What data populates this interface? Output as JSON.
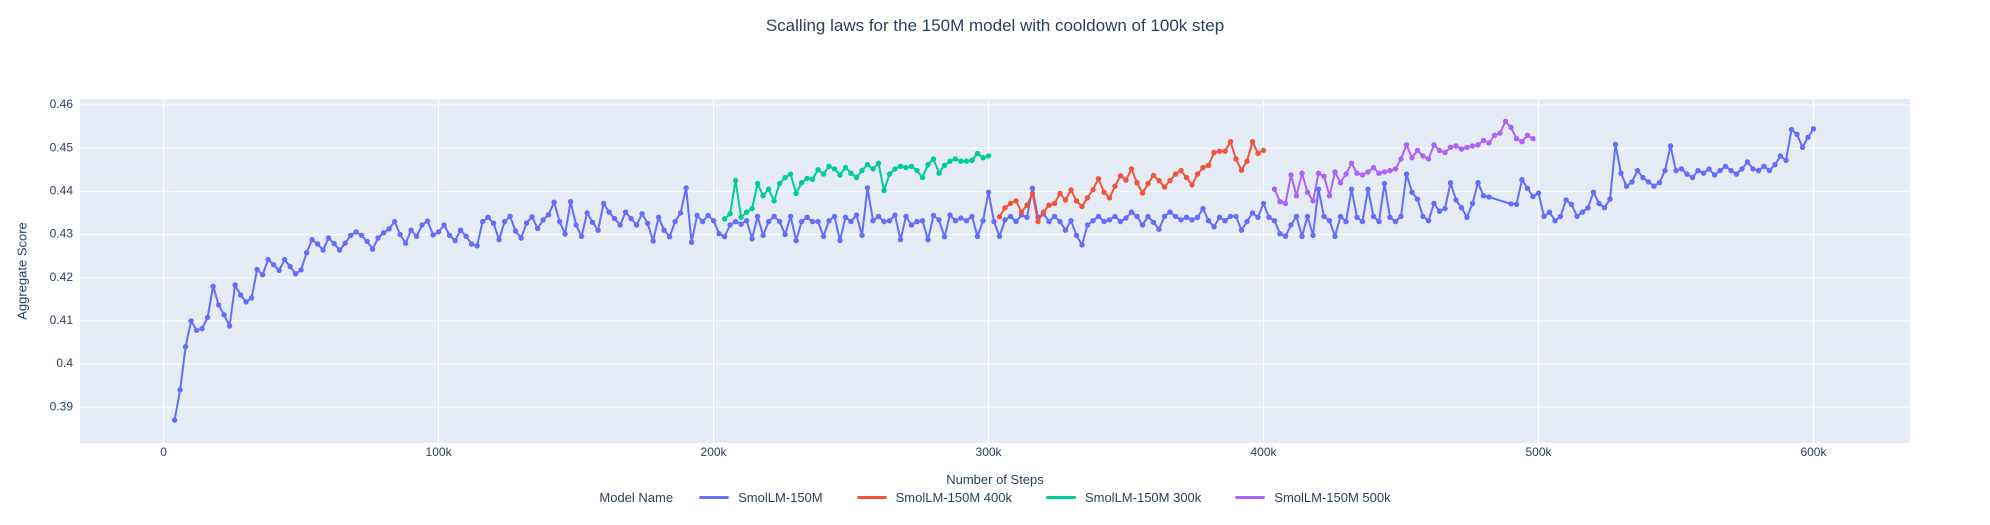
{
  "title": "Scalling laws for the 150M model with cooldown of 100k step",
  "chart_data": {
    "type": "line",
    "title": "Scalling laws for the 150M model with cooldown of 100k step",
    "xlabel": "Number of Steps",
    "ylabel": "Aggregate Score",
    "legend_title": "Model Name",
    "legend_position": "bottom-center",
    "grid": true,
    "plot_bgcolor": "#e5ecf6",
    "paper_bgcolor": "#ffffff",
    "grid_color": "#ffffff",
    "text_color": "#2a3f5f",
    "x_unit": "thousands of steps",
    "xlim_k": [
      -30.4,
      635.1
    ],
    "ylim": [
      0.3817,
      0.4614
    ],
    "xticks": [
      {
        "k": 0,
        "label": "0"
      },
      {
        "k": 100,
        "label": "100k"
      },
      {
        "k": 200,
        "label": "200k"
      },
      {
        "k": 300,
        "label": "300k"
      },
      {
        "k": 400,
        "label": "400k"
      },
      {
        "k": 500,
        "label": "500k"
      },
      {
        "k": 600,
        "label": "600k"
      }
    ],
    "yticks": [
      {
        "v": 0.39,
        "label": "0.39"
      },
      {
        "v": 0.4,
        "label": "0.4"
      },
      {
        "v": 0.41,
        "label": "0.41"
      },
      {
        "v": 0.42,
        "label": "0.42"
      },
      {
        "v": 0.43,
        "label": "0.43"
      },
      {
        "v": 0.44,
        "label": "0.44"
      },
      {
        "v": 0.45,
        "label": "0.45"
      },
      {
        "v": 0.46,
        "label": "0.46"
      }
    ],
    "series": [
      {
        "name": "SmolLM-150M",
        "color": "#636efa",
        "x_start_k": 4,
        "x_step_k": 2,
        "values": [
          0.387,
          0.394,
          0.404,
          0.41,
          0.4078,
          0.4082,
          0.4108,
          0.418,
          0.4137,
          0.4114,
          0.4088,
          0.4183,
          0.416,
          0.4144,
          0.4153,
          0.4219,
          0.4207,
          0.4242,
          0.423,
          0.4217,
          0.4242,
          0.4226,
          0.4209,
          0.4218,
          0.4258,
          0.4288,
          0.4278,
          0.4264,
          0.4292,
          0.4279,
          0.4264,
          0.428,
          0.4298,
          0.4306,
          0.4298,
          0.4284,
          0.4266,
          0.4292,
          0.4304,
          0.4313,
          0.433,
          0.43,
          0.428,
          0.431,
          0.4296,
          0.4322,
          0.4331,
          0.4299,
          0.4306,
          0.4322,
          0.4298,
          0.4286,
          0.431,
          0.4296,
          0.4278,
          0.4274,
          0.433,
          0.434,
          0.4326,
          0.4288,
          0.433,
          0.4342,
          0.4308,
          0.4292,
          0.4327,
          0.4341,
          0.4314,
          0.4334,
          0.4346,
          0.4375,
          0.433,
          0.4301,
          0.4376,
          0.4322,
          0.4296,
          0.435,
          0.4328,
          0.431,
          0.4372,
          0.4352,
          0.4337,
          0.4322,
          0.4352,
          0.4337,
          0.4322,
          0.4348,
          0.4326,
          0.4285,
          0.434,
          0.431,
          0.4295,
          0.433,
          0.435,
          0.4408,
          0.4282,
          0.4344,
          0.433,
          0.4344,
          0.4332,
          0.4302,
          0.4295,
          0.4322,
          0.433,
          0.4324,
          0.4332,
          0.429,
          0.4342,
          0.4298,
          0.433,
          0.4342,
          0.433,
          0.43,
          0.4342,
          0.4286,
          0.433,
          0.434,
          0.433,
          0.433,
          0.4296,
          0.4332,
          0.4342,
          0.4286,
          0.434,
          0.433,
          0.4345,
          0.4298,
          0.4408,
          0.4332,
          0.4342,
          0.433,
          0.4332,
          0.4345,
          0.4288,
          0.4342,
          0.4322,
          0.433,
          0.4332,
          0.4288,
          0.4344,
          0.4334,
          0.4295,
          0.4345,
          0.4332,
          0.4338,
          0.4332,
          0.4342,
          0.4296,
          0.4332,
          0.4398,
          0.433,
          0.4296,
          0.4334,
          0.4342,
          0.433,
          0.4345,
          0.434,
          0.4407,
          0.434,
          0.4348,
          0.433,
          0.4342,
          0.433,
          0.431,
          0.4332,
          0.4298,
          0.4276,
          0.4322,
          0.4332,
          0.4342,
          0.433,
          0.4334,
          0.4342,
          0.433,
          0.4338,
          0.4352,
          0.4342,
          0.4322,
          0.4342,
          0.4328,
          0.4312,
          0.4342,
          0.4352,
          0.4342,
          0.4334,
          0.434,
          0.4334,
          0.434,
          0.436,
          0.4332,
          0.4318,
          0.434,
          0.4332,
          0.4342,
          0.4342,
          0.431,
          0.433,
          0.435,
          0.434,
          0.4372,
          0.434,
          0.4332,
          0.4302,
          0.4296,
          0.4322,
          0.4342,
          0.4296,
          0.4342,
          0.4298,
          0.4405,
          0.4342,
          0.4332,
          0.4296,
          0.4342,
          0.433,
          0.4405,
          0.434,
          0.433,
          0.4405,
          0.4342,
          0.433,
          0.4418,
          0.434,
          0.433,
          0.4342,
          0.444,
          0.4398,
          0.4382,
          0.4342,
          0.4332,
          0.4372,
          0.4354,
          0.436,
          0.442,
          0.438,
          0.4362,
          0.434,
          0.4372,
          0.442,
          0.439,
          0.4387,
          null,
          null,
          null,
          0.4371,
          0.437,
          0.4427,
          0.4407,
          0.4388,
          0.4396,
          0.4342,
          0.4352,
          0.4332,
          0.4342,
          0.438,
          0.437,
          0.4342,
          0.4352,
          0.4362,
          0.4398,
          0.4372,
          0.4362,
          0.4382,
          0.4509,
          0.4442,
          0.4412,
          0.4422,
          0.4448,
          0.4432,
          0.4422,
          0.4412,
          0.442,
          0.4448,
          0.4505,
          0.4448,
          0.4452,
          0.444,
          0.4432,
          0.4448,
          0.4442,
          0.4452,
          0.4438,
          0.4448,
          0.4458,
          0.4448,
          0.444,
          0.4452,
          0.4468,
          0.4452,
          0.4448,
          0.4458,
          0.4448,
          0.4462,
          0.4482,
          0.4472,
          0.4543,
          0.4532,
          0.4502,
          0.4525,
          0.4545
        ]
      },
      {
        "name": "SmolLM-150M 400k",
        "color": "#ef553b",
        "x_start_k": 304,
        "x_step_k": 2,
        "values": [
          0.4341,
          0.4362,
          0.4372,
          0.4378,
          0.4352,
          0.4368,
          0.4395,
          0.433,
          0.4352,
          0.4368,
          0.4372,
          0.4395,
          0.438,
          0.4403,
          0.4378,
          0.4365,
          0.4385,
          0.4404,
          0.4429,
          0.4398,
          0.4385,
          0.4412,
          0.4436,
          0.4426,
          0.4452,
          0.442,
          0.4396,
          0.4418,
          0.4437,
          0.4425,
          0.441,
          0.4425,
          0.444,
          0.4448,
          0.4432,
          0.4415,
          0.444,
          0.4455,
          0.446,
          0.449,
          0.4493,
          0.4493,
          0.4515,
          0.4475,
          0.4449,
          0.447,
          0.4515,
          0.4488,
          0.4495
        ]
      },
      {
        "name": "SmolLM-150M 300k",
        "color": "#00cc96",
        "x_start_k": 204,
        "x_step_k": 2,
        "values": [
          0.4336,
          0.4348,
          0.4425,
          0.434,
          0.4352,
          0.436,
          0.4418,
          0.439,
          0.4405,
          0.4378,
          0.4418,
          0.4432,
          0.444,
          0.4395,
          0.442,
          0.443,
          0.4428,
          0.445,
          0.444,
          0.4458,
          0.4452,
          0.4438,
          0.4455,
          0.4442,
          0.4432,
          0.4448,
          0.4462,
          0.4452,
          0.4465,
          0.4402,
          0.444,
          0.4452,
          0.4458,
          0.4455,
          0.4458,
          0.4448,
          0.4432,
          0.4462,
          0.4475,
          0.4442,
          0.446,
          0.447,
          0.4475,
          0.447,
          0.447,
          0.4472,
          0.4488,
          0.4478,
          0.4482
        ]
      },
      {
        "name": "SmolLM-150M 500k",
        "color": "#ab63fa",
        "x_start_k": 404,
        "x_step_k": 2,
        "values": [
          0.4405,
          0.4376,
          0.4372,
          0.4438,
          0.439,
          0.4442,
          0.4398,
          0.4378,
          0.4442,
          0.4435,
          0.439,
          0.4445,
          0.442,
          0.444,
          0.4465,
          0.4442,
          0.4438,
          0.4445,
          0.4455,
          0.4442,
          0.4445,
          0.4448,
          0.4452,
          0.4475,
          0.4508,
          0.4478,
          0.4495,
          0.4482,
          0.4475,
          0.4508,
          0.4495,
          0.449,
          0.4502,
          0.4505,
          0.4498,
          0.4502,
          0.4505,
          0.4508,
          0.4518,
          0.4512,
          0.453,
          0.4535,
          0.4562,
          0.4548,
          0.4522,
          0.4515,
          0.453,
          0.4522
        ]
      }
    ]
  }
}
